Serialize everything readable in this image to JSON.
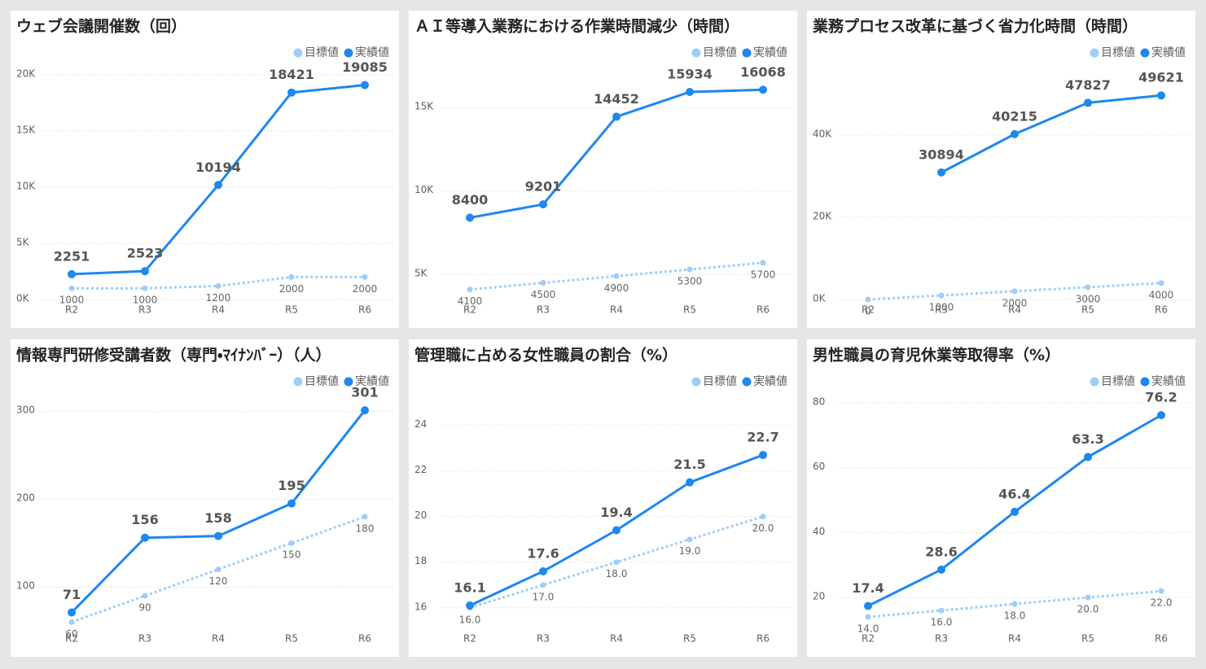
{
  "chart_data": [
    {
      "type": "line",
      "title": "ウェブ会議開催数（回）",
      "categories": [
        "R2",
        "R3",
        "R4",
        "R5",
        "R6"
      ],
      "series": [
        {
          "name": "目標値",
          "color": "#9fcdf8",
          "dashed": true,
          "values": [
            1000,
            1000,
            1200,
            2000,
            2000
          ]
        },
        {
          "name": "実績値",
          "color": "#1e87f0",
          "dashed": false,
          "values": [
            2251,
            2523,
            10194,
            18421,
            19085
          ]
        }
      ],
      "ylim": [
        0,
        20500
      ],
      "yticks": [
        {
          "value": 0,
          "label": "0K"
        },
        {
          "value": 5000,
          "label": "5K"
        },
        {
          "value": 10000,
          "label": "10K"
        },
        {
          "value": 15000,
          "label": "15K"
        },
        {
          "value": 20000,
          "label": "20K"
        }
      ],
      "grid": true
    },
    {
      "type": "line",
      "title": "ＡＩ等導入業務における作業時間減少（時間）",
      "categories": [
        "R2",
        "R3",
        "R4",
        "R5",
        "R6"
      ],
      "series": [
        {
          "name": "目標値",
          "color": "#9fcdf8",
          "dashed": true,
          "values": [
            4100,
            4500,
            4900,
            5300,
            5700
          ]
        },
        {
          "name": "実績値",
          "color": "#1e87f0",
          "dashed": false,
          "values": [
            8400,
            9201,
            14452,
            15934,
            16068
          ]
        }
      ],
      "ylim": [
        3500,
        17300
      ],
      "yticks": [
        {
          "value": 5000,
          "label": "5K"
        },
        {
          "value": 10000,
          "label": "10K"
        },
        {
          "value": 15000,
          "label": "15K"
        }
      ],
      "grid": true
    },
    {
      "type": "line",
      "title": "業務プロセス改革に基づく省力化時間（時間）",
      "categories": [
        "R2",
        "R3",
        "R4",
        "R5",
        "R6"
      ],
      "series": [
        {
          "name": "目標値",
          "color": "#9fcdf8",
          "dashed": true,
          "values": [
            0,
            1000,
            2000,
            3000,
            4000
          ]
        },
        {
          "name": "実績値",
          "color": "#1e87f0",
          "dashed": false,
          "values": [
            null,
            30894,
            40215,
            47827,
            49621
          ]
        }
      ],
      "ylim": [
        0,
        56000
      ],
      "yticks": [
        {
          "value": 0,
          "label": "0K"
        },
        {
          "value": 20000,
          "label": "20K"
        },
        {
          "value": 40000,
          "label": "40K"
        }
      ],
      "grid": true
    },
    {
      "type": "line",
      "title": "情報専門研修受講者数（専門・ﾏｲﾅﾝﾊﾞｰ）（人）",
      "categories": [
        "R2",
        "R3",
        "R4",
        "R5",
        "R6"
      ],
      "series": [
        {
          "name": "目標値",
          "color": "#9fcdf8",
          "dashed": true,
          "values": [
            60,
            90,
            120,
            150,
            180
          ]
        },
        {
          "name": "実績値",
          "color": "#1e87f0",
          "dashed": false,
          "values": [
            71,
            156,
            158,
            195,
            301
          ]
        }
      ],
      "ylim": [
        53,
        315
      ],
      "yticks": [
        100,
        200,
        300
      ],
      "grid": true
    },
    {
      "type": "line",
      "title": "管理職に占める女性職員の割合（%）",
      "categories": [
        "R2",
        "R3",
        "R4",
        "R5",
        "R6"
      ],
      "series": [
        {
          "name": "目標値",
          "color": "#9fcdf8",
          "dashed": true,
          "values": [
            16,
            17,
            18,
            19,
            20
          ],
          "value_labels": [
            "16.0",
            "17.0",
            "18.0",
            "19.0",
            "20.0"
          ]
        },
        {
          "name": "実績値",
          "color": "#1e87f0",
          "dashed": false,
          "values": [
            16.1,
            17.6,
            19.4,
            21.5,
            22.7
          ]
        }
      ],
      "ylim": [
        15.1,
        25.2
      ],
      "yticks": [
        16,
        18,
        20,
        22,
        24
      ],
      "grid": true
    },
    {
      "type": "line",
      "title": "男性職員の育児休業等取得率（%）",
      "categories": [
        "R2",
        "R3",
        "R4",
        "R5",
        "R6"
      ],
      "series": [
        {
          "name": "目標値",
          "color": "#9fcdf8",
          "dashed": true,
          "values": [
            14,
            16,
            18,
            20,
            22
          ],
          "value_labels": [
            "14.0",
            "16.0",
            "18.0",
            "20.0",
            "22.0"
          ]
        },
        {
          "name": "実績値",
          "color": "#1e87f0",
          "dashed": false,
          "values": [
            17.4,
            28.6,
            46.4,
            63.3,
            76.2
          ]
        }
      ],
      "ylim": [
        10.5,
        81.5
      ],
      "yticks": [
        20,
        40,
        60,
        80
      ],
      "grid": true
    }
  ]
}
